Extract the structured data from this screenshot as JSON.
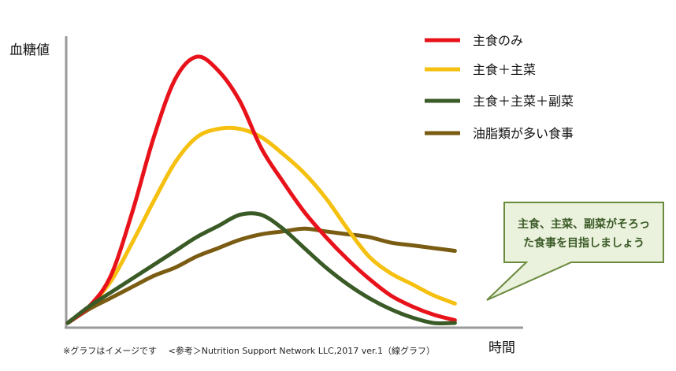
{
  "chart_data": {
    "type": "line",
    "ylabel": "血糖値",
    "xlabel": "時間",
    "xlim": [
      0,
      100
    ],
    "ylim": [
      0,
      100
    ],
    "legend_position": "top-right",
    "grid": false,
    "axis_ticks_labeled": false,
    "series": [
      {
        "name": "主食のみ",
        "color": "#e8121a",
        "points": [
          [
            0,
            0
          ],
          [
            5,
            6
          ],
          [
            10,
            17
          ],
          [
            15,
            40
          ],
          [
            20,
            67
          ],
          [
            25,
            88
          ],
          [
            30,
            96
          ],
          [
            35,
            91
          ],
          [
            40,
            80
          ],
          [
            45,
            63
          ],
          [
            50,
            51
          ],
          [
            55,
            40
          ],
          [
            60,
            31
          ],
          [
            65,
            23
          ],
          [
            70,
            16
          ],
          [
            75,
            10
          ],
          [
            80,
            6
          ],
          [
            85,
            3
          ],
          [
            90,
            1
          ]
        ]
      },
      {
        "name": "主食＋主菜",
        "color": "#f5c010",
        "points": [
          [
            0,
            0
          ],
          [
            5,
            6
          ],
          [
            10,
            15
          ],
          [
            15,
            29
          ],
          [
            20,
            44
          ],
          [
            25,
            58
          ],
          [
            30,
            67
          ],
          [
            35,
            70
          ],
          [
            40,
            70
          ],
          [
            45,
            67
          ],
          [
            50,
            61
          ],
          [
            55,
            54
          ],
          [
            60,
            45
          ],
          [
            65,
            34
          ],
          [
            70,
            24
          ],
          [
            75,
            18
          ],
          [
            80,
            14
          ],
          [
            85,
            10
          ],
          [
            90,
            7
          ]
        ]
      },
      {
        "name": "主食＋主菜＋副菜",
        "color": "#3a5a26",
        "points": [
          [
            0,
            0
          ],
          [
            5,
            6
          ],
          [
            10,
            11
          ],
          [
            15,
            16
          ],
          [
            20,
            21
          ],
          [
            25,
            26
          ],
          [
            30,
            31
          ],
          [
            35,
            35
          ],
          [
            40,
            39
          ],
          [
            45,
            39
          ],
          [
            50,
            34
          ],
          [
            55,
            27
          ],
          [
            60,
            20
          ],
          [
            65,
            14
          ],
          [
            70,
            9
          ],
          [
            75,
            5
          ],
          [
            80,
            2
          ],
          [
            85,
            0
          ],
          [
            90,
            0
          ]
        ]
      },
      {
        "name": "油脂類が多い食事",
        "color": "#7a5c13",
        "points": [
          [
            0,
            0
          ],
          [
            5,
            5
          ],
          [
            10,
            9
          ],
          [
            15,
            13
          ],
          [
            20,
            17
          ],
          [
            25,
            20
          ],
          [
            30,
            24
          ],
          [
            35,
            27
          ],
          [
            40,
            30
          ],
          [
            45,
            32
          ],
          [
            50,
            33
          ],
          [
            55,
            34
          ],
          [
            60,
            33
          ],
          [
            65,
            32
          ],
          [
            70,
            31
          ],
          [
            75,
            29
          ],
          [
            80,
            28
          ],
          [
            85,
            27
          ],
          [
            90,
            26
          ]
        ]
      }
    ],
    "callout": {
      "text_line1": "主食、主菜、副菜がそろっ",
      "text_line2": "た食事を目指しましょう",
      "fill": "#eaf1dc",
      "border": "#6a8a3c",
      "text_color": "#3a5a26"
    },
    "footnote": "※グラフはイメージです　 <参考＞Nutrition Support Network LLC,2017 ver.1（線グラフ）"
  }
}
